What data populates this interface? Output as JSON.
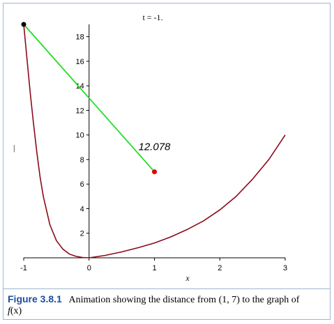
{
  "chart_data": {
    "type": "line",
    "xlabel": "x",
    "ylabel": "",
    "xlim": [
      -1,
      3
    ],
    "ylim": [
      0,
      19
    ],
    "xticks": [
      -1,
      0,
      1,
      2,
      3
    ],
    "xtick_labels": [
      "-1",
      "0",
      "1",
      "2",
      "3"
    ],
    "yticks": [
      2,
      4,
      6,
      8,
      10,
      12,
      14,
      16,
      18
    ],
    "ytick_labels": [
      "2",
      "4",
      "6",
      "8",
      "10",
      "12",
      "14",
      "16",
      "18"
    ],
    "parameter_label": "t = -1.",
    "curve": {
      "color": "#8b0a1a",
      "x": [
        -1,
        -0.95,
        -0.9,
        -0.85,
        -0.8,
        -0.75,
        -0.7,
        -0.6,
        -0.5,
        -0.4,
        -0.3,
        -0.2,
        -0.1,
        0,
        0.25,
        0.5,
        0.75,
        1,
        1.25,
        1.5,
        1.75,
        2,
        2.25,
        2.5,
        2.75,
        3
      ],
      "y": [
        19,
        16.2,
        13.4,
        10.9,
        8.6,
        6.6,
        5.0,
        2.7,
        1.4,
        0.7,
        0.3,
        0.12,
        0.03,
        0,
        0.2,
        0.48,
        0.82,
        1.2,
        1.7,
        2.3,
        3.0,
        3.9,
        5.0,
        6.4,
        8.0,
        10.0
      ]
    },
    "point_on_curve": {
      "x": -1,
      "y": 19,
      "color": "#000000"
    },
    "target_point": {
      "x": 1,
      "y": 7,
      "color": "#e00000"
    },
    "distance_segment": {
      "color": "#22dd22"
    },
    "distance_label": "12.078"
  },
  "caption": {
    "label": "Figure 3.8.1",
    "text_before": "Animation showing the distance from (1, 7) to the graph of",
    "func_letter": "f",
    "func_arg": "(x)"
  },
  "cursor_mark": "|"
}
